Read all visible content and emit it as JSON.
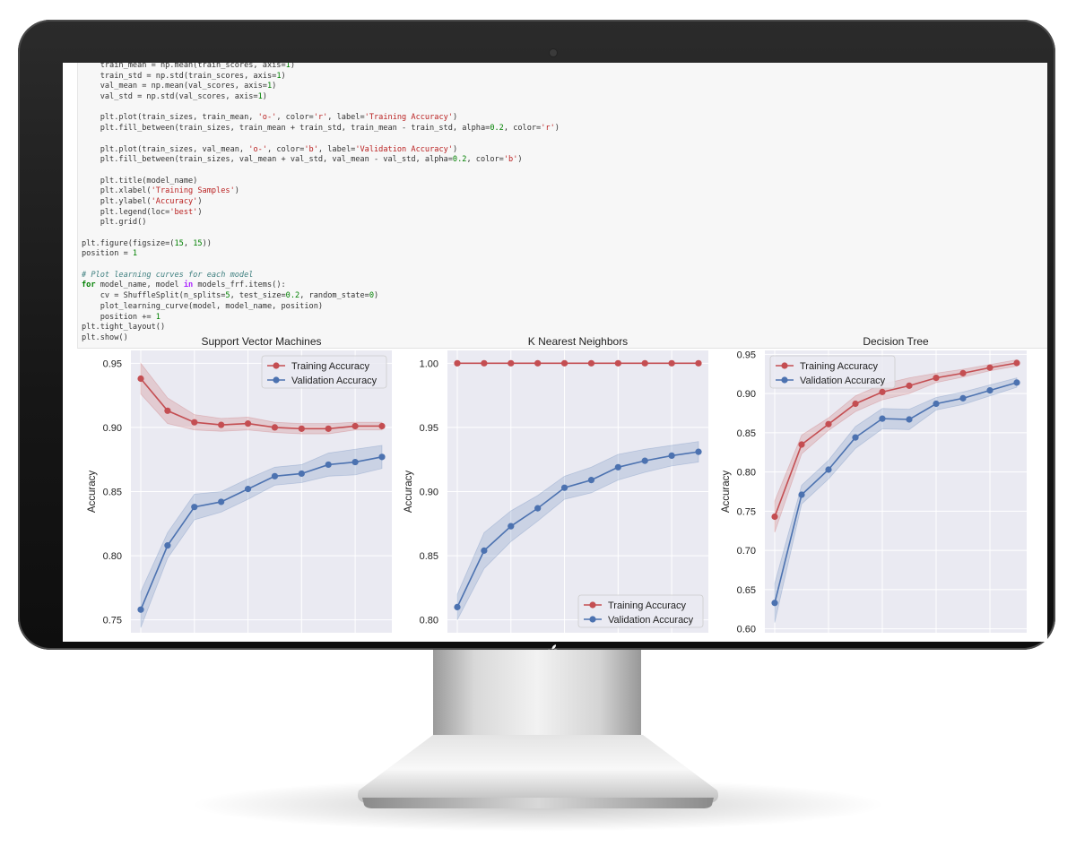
{
  "code": {
    "lines": [
      [
        {
          "t": "    train_mean = np.mean(train_scores, axis="
        },
        {
          "t": "1",
          "c": "n"
        },
        {
          "t": ")"
        }
      ],
      [
        {
          "t": "    train_std = np.std(train_scores, axis="
        },
        {
          "t": "1",
          "c": "n"
        },
        {
          "t": ")"
        }
      ],
      [
        {
          "t": "    val_mean = np.mean(val_scores, axis="
        },
        {
          "t": "1",
          "c": "n"
        },
        {
          "t": ")"
        }
      ],
      [
        {
          "t": "    val_std = np.std(val_scores, axis="
        },
        {
          "t": "1",
          "c": "n"
        },
        {
          "t": ")"
        }
      ],
      [],
      [
        {
          "t": "    plt.plot(train_sizes, train_mean, "
        },
        {
          "t": "'o-'",
          "c": "s"
        },
        {
          "t": ", color="
        },
        {
          "t": "'r'",
          "c": "s"
        },
        {
          "t": ", label="
        },
        {
          "t": "'Training Accuracy'",
          "c": "s"
        },
        {
          "t": ")"
        }
      ],
      [
        {
          "t": "    plt.fill_between(train_sizes, train_mean + train_std, train_mean - train_std, alpha="
        },
        {
          "t": "0.2",
          "c": "n"
        },
        {
          "t": ", color="
        },
        {
          "t": "'r'",
          "c": "s"
        },
        {
          "t": ")"
        }
      ],
      [],
      [
        {
          "t": "    plt.plot(train_sizes, val_mean, "
        },
        {
          "t": "'o-'",
          "c": "s"
        },
        {
          "t": ", color="
        },
        {
          "t": "'b'",
          "c": "s"
        },
        {
          "t": ", label="
        },
        {
          "t": "'Validation Accuracy'",
          "c": "s"
        },
        {
          "t": ")"
        }
      ],
      [
        {
          "t": "    plt.fill_between(train_sizes, val_mean + val_std, val_mean - val_std, alpha="
        },
        {
          "t": "0.2",
          "c": "n"
        },
        {
          "t": ", color="
        },
        {
          "t": "'b'",
          "c": "s"
        },
        {
          "t": ")"
        }
      ],
      [],
      [
        {
          "t": "    plt.title(model_name)"
        }
      ],
      [
        {
          "t": "    plt.xlabel("
        },
        {
          "t": "'Training Samples'",
          "c": "s"
        },
        {
          "t": ")"
        }
      ],
      [
        {
          "t": "    plt.ylabel("
        },
        {
          "t": "'Accuracy'",
          "c": "s"
        },
        {
          "t": ")"
        }
      ],
      [
        {
          "t": "    plt.legend(loc="
        },
        {
          "t": "'best'",
          "c": "s"
        },
        {
          "t": ")"
        }
      ],
      [
        {
          "t": "    plt.grid()"
        }
      ],
      [],
      [
        {
          "t": "plt.figure(figsize=("
        },
        {
          "t": "15",
          "c": "n"
        },
        {
          "t": ", "
        },
        {
          "t": "15",
          "c": "n"
        },
        {
          "t": "))"
        }
      ],
      [
        {
          "t": "position = "
        },
        {
          "t": "1",
          "c": "n"
        }
      ],
      [],
      [
        {
          "t": "# Plot learning curves for each model",
          "c": "c"
        }
      ],
      [
        {
          "t": "for",
          "c": "k"
        },
        {
          "t": " model_name, model "
        },
        {
          "t": "in",
          "c": "o"
        },
        {
          "t": " models_frf.items():"
        }
      ],
      [
        {
          "t": "    cv = ShuffleSplit(n_splits="
        },
        {
          "t": "5",
          "c": "n"
        },
        {
          "t": ", test_size="
        },
        {
          "t": "0.2",
          "c": "n"
        },
        {
          "t": ", random_state="
        },
        {
          "t": "0",
          "c": "n"
        },
        {
          "t": ")"
        }
      ],
      [
        {
          "t": "    plot_learning_curve(model, model_name, position)"
        }
      ],
      [
        {
          "t": "    position += "
        },
        {
          "t": "1",
          "c": "n"
        }
      ],
      [
        {
          "t": "plt.tight_layout()"
        }
      ],
      [
        {
          "t": "plt.show()"
        }
      ]
    ]
  },
  "colors": {
    "training": "#c44e52",
    "validation": "#4c72b0",
    "axes_bg": "#eaeaf2",
    "grid": "#ffffff"
  },
  "chart_data": [
    {
      "type": "line",
      "title": "Support Vector Machines",
      "ylabel": "Accuracy",
      "xlabel": "",
      "ylim": [
        0.74,
        0.96
      ],
      "yticks": [
        "0.75",
        "0.80",
        "0.85",
        "0.90",
        "0.95"
      ],
      "grid": true,
      "legend": "top-right",
      "x": [
        1,
        2,
        3,
        4,
        5,
        6,
        7,
        8,
        9,
        10
      ],
      "series": [
        {
          "name": "Training Accuracy",
          "color": "#c44e52",
          "values": [
            0.938,
            0.913,
            0.904,
            0.902,
            0.903,
            0.9,
            0.899,
            0.899,
            0.901,
            0.901
          ],
          "std": [
            0.012,
            0.01,
            0.006,
            0.005,
            0.005,
            0.004,
            0.004,
            0.004,
            0.003,
            0.003
          ]
        },
        {
          "name": "Validation Accuracy",
          "color": "#4c72b0",
          "values": [
            0.758,
            0.808,
            0.838,
            0.842,
            0.852,
            0.862,
            0.864,
            0.871,
            0.873,
            0.877
          ],
          "std": [
            0.014,
            0.01,
            0.01,
            0.008,
            0.008,
            0.007,
            0.007,
            0.009,
            0.01,
            0.009
          ]
        }
      ]
    },
    {
      "type": "line",
      "title": "K Nearest Neighbors",
      "ylabel": "Accuracy",
      "xlabel": "",
      "ylim": [
        0.79,
        1.01
      ],
      "yticks": [
        "0.80",
        "0.85",
        "0.90",
        "0.95",
        "1.00"
      ],
      "grid": true,
      "legend": "bottom-right",
      "x": [
        1,
        2,
        3,
        4,
        5,
        6,
        7,
        8,
        9,
        10
      ],
      "series": [
        {
          "name": "Training Accuracy",
          "color": "#c44e52",
          "values": [
            1.0,
            1.0,
            1.0,
            1.0,
            1.0,
            1.0,
            1.0,
            1.0,
            1.0,
            1.0
          ],
          "std": [
            0,
            0,
            0,
            0,
            0,
            0,
            0,
            0,
            0,
            0
          ]
        },
        {
          "name": "Validation Accuracy",
          "color": "#4c72b0",
          "values": [
            0.81,
            0.854,
            0.873,
            0.887,
            0.903,
            0.909,
            0.919,
            0.924,
            0.928,
            0.931
          ],
          "std": [
            0.01,
            0.014,
            0.012,
            0.01,
            0.009,
            0.01,
            0.01,
            0.009,
            0.008,
            0.008
          ]
        }
      ]
    },
    {
      "type": "line",
      "title": "Decision Tree",
      "ylabel": "Accuracy",
      "xlabel": "",
      "ylim": [
        0.595,
        0.955
      ],
      "yticks": [
        "0.60",
        "0.65",
        "0.70",
        "0.75",
        "0.80",
        "0.85",
        "0.90",
        "0.95"
      ],
      "grid": true,
      "legend": "top-left",
      "x": [
        1,
        2,
        3,
        4,
        5,
        6,
        7,
        8,
        9,
        10
      ],
      "series": [
        {
          "name": "Training Accuracy",
          "color": "#c44e52",
          "values": [
            0.743,
            0.835,
            0.861,
            0.887,
            0.902,
            0.91,
            0.92,
            0.926,
            0.933,
            0.939
          ],
          "std": [
            0.02,
            0.012,
            0.008,
            0.01,
            0.01,
            0.01,
            0.006,
            0.005,
            0.004,
            0.004
          ]
        },
        {
          "name": "Validation Accuracy",
          "color": "#4c72b0",
          "values": [
            0.633,
            0.771,
            0.803,
            0.844,
            0.868,
            0.867,
            0.887,
            0.894,
            0.904,
            0.914
          ],
          "std": [
            0.025,
            0.012,
            0.012,
            0.014,
            0.013,
            0.013,
            0.008,
            0.008,
            0.007,
            0.006
          ]
        }
      ]
    }
  ]
}
